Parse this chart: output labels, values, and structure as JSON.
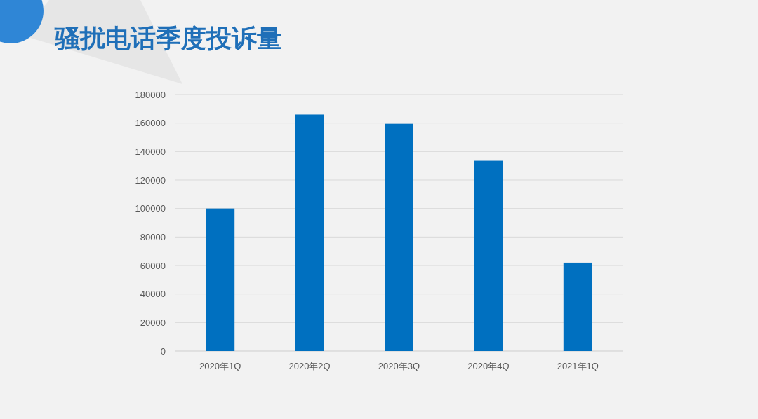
{
  "chart_data": {
    "type": "bar",
    "title": "骚扰电话季度投诉量",
    "categories": [
      "2020年1Q",
      "2020年2Q",
      "2020年3Q",
      "2020年4Q",
      "2021年1Q"
    ],
    "values": [
      100000,
      166000,
      159500,
      133500,
      62000
    ],
    "color": "#0070c0",
    "ylim": [
      0,
      180000
    ],
    "yticks": [
      0,
      20000,
      40000,
      60000,
      80000,
      100000,
      120000,
      140000,
      160000,
      180000
    ],
    "grid": "y"
  }
}
